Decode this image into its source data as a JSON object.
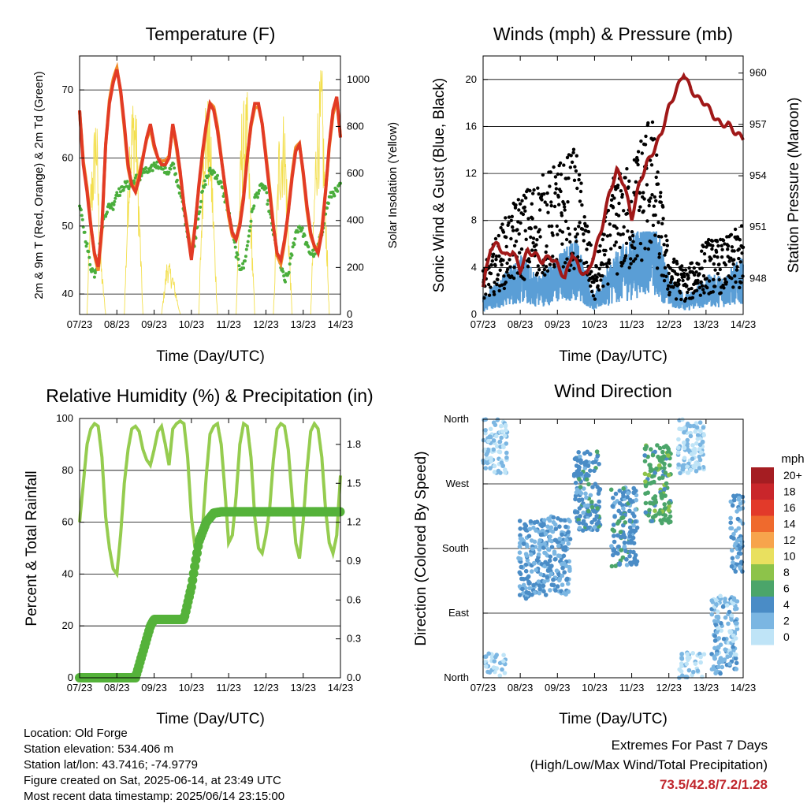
{
  "x_ticks": [
    "07/23",
    "08/23",
    "09/23",
    "10/23",
    "11/23",
    "12/23",
    "13/23",
    "14/23"
  ],
  "colors": {
    "temp2m": "#e23b25",
    "temp9m": "#f08a28",
    "dew": "#4aae3c",
    "solar": "#f3df4e",
    "wind": "#5a9ed6",
    "gust": "#000000",
    "pressure": "#a01818",
    "rh": "#95cc4f",
    "precip": "#55b23a"
  },
  "chart_data": [
    {
      "type": "line",
      "title": "Temperature (F)",
      "xlabel": "Time (Day/UTC)",
      "ylabel": "2m & 9m T (Red, Orange) & 2m Td (Green)",
      "ylabel_right": "Solar Insolation (Yellow)",
      "x_ticks": [
        "07/23",
        "08/23",
        "09/23",
        "10/23",
        "11/23",
        "12/23",
        "13/23",
        "14/23"
      ],
      "y_ticks": [
        40,
        50,
        60,
        70
      ],
      "y_ticks_right": [
        0,
        200,
        400,
        600,
        800,
        1000
      ],
      "ylim": [
        37,
        75
      ],
      "ylim_right": [
        0,
        1100
      ],
      "series": [
        {
          "name": "2m T",
          "x": [
            0,
            0.1,
            0.2,
            0.3,
            0.4,
            0.5,
            0.6,
            0.7,
            0.8,
            0.9,
            1.0,
            1.1,
            1.2,
            1.3,
            1.4,
            1.5,
            1.6,
            1.7,
            1.8,
            1.9,
            2.0,
            2.1,
            2.2,
            2.3,
            2.4,
            2.5,
            2.6,
            2.7,
            2.8,
            2.9,
            3.0,
            3.1,
            3.2,
            3.3,
            3.4,
            3.5,
            3.6,
            3.7,
            3.8,
            3.9,
            4.0,
            4.1,
            4.2,
            4.3,
            4.4,
            4.5,
            4.6,
            4.7,
            4.8,
            4.9,
            5.0,
            5.1,
            5.2,
            5.3,
            5.4,
            5.5,
            5.6,
            5.7,
            5.8,
            5.9,
            6.0,
            6.1,
            6.2,
            6.3,
            6.4,
            6.5,
            6.6,
            6.7,
            6.8,
            6.9,
            7.0
          ],
          "values": [
            67,
            59,
            55,
            50,
            46,
            44,
            50,
            62,
            68,
            71,
            73,
            70,
            65,
            59,
            56,
            55,
            57,
            60,
            63,
            65,
            62,
            60,
            59,
            59,
            60,
            65,
            62,
            58,
            53,
            49,
            45,
            50,
            56,
            61,
            65,
            68,
            67,
            64,
            60,
            56,
            52,
            49,
            48,
            50,
            54,
            60,
            65,
            68,
            68,
            65,
            60,
            55,
            50,
            46,
            45,
            48,
            52,
            57,
            61,
            62,
            58,
            53,
            49,
            47,
            46,
            49,
            55,
            62,
            67,
            69,
            63
          ]
        },
        {
          "name": "9m T",
          "x": [
            0,
            0.5,
            1.0,
            1.5,
            2.0,
            2.5,
            3.0,
            3.5,
            4.0,
            4.5,
            5.0,
            5.5,
            6.0,
            6.5,
            7.0
          ],
          "values": [
            67,
            45,
            72,
            56,
            62,
            64,
            45,
            68,
            52,
            60,
            59,
            46,
            59,
            48,
            64
          ]
        },
        {
          "name": "2m Td",
          "x": [
            0,
            0.1,
            0.2,
            0.3,
            0.4,
            0.5,
            0.6,
            0.7,
            0.8,
            0.9,
            1.0,
            1.1,
            1.2,
            1.3,
            1.4,
            1.5,
            1.6,
            1.7,
            1.8,
            1.9,
            2.0,
            2.1,
            2.2,
            2.3,
            2.4,
            2.5,
            2.6,
            2.7,
            2.8,
            2.9,
            3.0,
            3.1,
            3.2,
            3.3,
            3.4,
            3.5,
            3.6,
            3.7,
            3.8,
            3.9,
            4.0,
            4.1,
            4.2,
            4.3,
            4.4,
            4.5,
            4.6,
            4.7,
            4.8,
            4.9,
            5.0,
            5.1,
            5.2,
            5.3,
            5.4,
            5.5,
            5.6,
            5.7,
            5.8,
            5.9,
            6.0,
            6.1,
            6.2,
            6.3,
            6.4,
            6.5,
            6.6,
            6.7,
            6.8,
            6.9,
            7.0
          ],
          "values": [
            53,
            50,
            47,
            44,
            43,
            45,
            50,
            52,
            53,
            53,
            55,
            55,
            56,
            56,
            56,
            57,
            57,
            58,
            58,
            58,
            59,
            59,
            59,
            58,
            58,
            59,
            57,
            55,
            52,
            49,
            46,
            48,
            52,
            55,
            57,
            58,
            58,
            57,
            56,
            54,
            52,
            49,
            46,
            44,
            44,
            47,
            51,
            54,
            55,
            56,
            55,
            52,
            49,
            46,
            44,
            42,
            43,
            46,
            49,
            50,
            49,
            47,
            46,
            46,
            47,
            49,
            52,
            54,
            55,
            55,
            56
          ]
        },
        {
          "name": "Solar",
          "x": [
            0,
            0.2,
            0.3,
            0.45,
            0.55,
            0.7,
            1.2,
            1.35,
            1.5,
            1.7,
            2.2,
            2.35,
            2.5,
            2.7,
            3.2,
            3.35,
            3.5,
            3.7,
            4.2,
            4.35,
            4.5,
            4.7,
            5.2,
            5.35,
            5.5,
            5.7,
            6.2,
            6.35,
            6.5,
            6.7,
            7.0
          ],
          "values": [
            0,
            0,
            600,
            950,
            300,
            0,
            0,
            900,
            1000,
            0,
            0,
            250,
            180,
            0,
            0,
            1000,
            900,
            0,
            0,
            900,
            950,
            0,
            0,
            800,
            900,
            0,
            0,
            850,
            1100,
            0,
            0
          ]
        }
      ]
    },
    {
      "type": "scatter",
      "title": "Winds (mph) & Pressure (mb)",
      "xlabel": "Time (Day/UTC)",
      "ylabel": "Sonic Wind & Gust (Blue, Black)",
      "ylabel_right": "Station Pressure (Maroon)",
      "x_ticks": [
        "07/23",
        "08/23",
        "09/23",
        "10/23",
        "11/23",
        "12/23",
        "13/23",
        "14/23"
      ],
      "y_ticks": [
        0,
        4,
        8,
        12,
        16,
        20
      ],
      "y_ticks_right": [
        948,
        951,
        954,
        957,
        960
      ],
      "ylim": [
        0,
        22
      ],
      "ylim_right": [
        945.9,
        961
      ],
      "series": [
        {
          "name": "Pressure",
          "x": [
            0,
            0.2,
            0.4,
            0.6,
            0.8,
            1.0,
            1.2,
            1.4,
            1.6,
            1.8,
            2.0,
            2.2,
            2.4,
            2.6,
            2.8,
            3.0,
            3.2,
            3.4,
            3.6,
            3.8,
            4.0,
            4.2,
            4.4,
            4.6,
            4.8,
            5.0,
            5.2,
            5.4,
            5.6,
            5.8,
            6.0,
            6.2,
            6.4,
            6.6,
            6.8,
            7.0
          ],
          "values": [
            947.5,
            949.8,
            950.0,
            949.3,
            949.6,
            948.5,
            949.6,
            949.4,
            949.0,
            949.3,
            948.8,
            948.0,
            949.5,
            948.5,
            948.2,
            949.5,
            951.0,
            953.0,
            954.3,
            953.5,
            951.5,
            953.5,
            954.7,
            955.5,
            956.5,
            958.0,
            959.0,
            960.0,
            959.0,
            958.5,
            958.2,
            957.5,
            957.0,
            957.0,
            956.5,
            956.2
          ]
        },
        {
          "name": "Wind",
          "x": [
            0,
            0.5,
            1.0,
            1.5,
            2.0,
            2.5,
            3.0,
            3.5,
            4.0,
            4.5,
            5.0,
            5.5,
            6.0,
            6.5,
            7.0
          ],
          "values": [
            1,
            2,
            3,
            2,
            3,
            4,
            1,
            3,
            4,
            6,
            2,
            1,
            2,
            2,
            3
          ]
        },
        {
          "name": "Gust",
          "x": [
            0,
            0.5,
            1.0,
            1.5,
            2.0,
            2.5,
            3.0,
            3.5,
            4.0,
            4.5,
            5.0,
            5.5,
            6.0,
            6.5,
            7.0
          ],
          "values": [
            3,
            6,
            8,
            9,
            10,
            11,
            3,
            9,
            10,
            14,
            4,
            3,
            5,
            5,
            6
          ]
        }
      ]
    },
    {
      "type": "line",
      "title": "Relative Humidity (%) & Precipitation (in)",
      "xlabel": "Time (Day/UTC)",
      "ylabel": "Percent & Total Rainfall",
      "x_ticks": [
        "07/23",
        "08/23",
        "09/23",
        "10/23",
        "11/23",
        "12/23",
        "13/23",
        "14/23"
      ],
      "y_ticks": [
        0,
        20,
        40,
        60,
        80,
        100
      ],
      "y_ticks_right": [
        "0.0",
        "0.3",
        "0.6",
        "0.9",
        "1.2",
        "1.5",
        "1.8"
      ],
      "ylim": [
        0,
        100
      ],
      "ylim_right": [
        0,
        2.0
      ],
      "series": [
        {
          "name": "RH",
          "x": [
            0,
            0.1,
            0.2,
            0.3,
            0.4,
            0.5,
            0.6,
            0.7,
            0.8,
            0.9,
            1.0,
            1.1,
            1.2,
            1.3,
            1.4,
            1.5,
            1.6,
            1.7,
            1.8,
            1.9,
            2.0,
            2.1,
            2.2,
            2.3,
            2.4,
            2.5,
            2.6,
            2.7,
            2.8,
            2.9,
            3.0,
            3.1,
            3.2,
            3.3,
            3.4,
            3.5,
            3.6,
            3.7,
            3.8,
            3.9,
            4.0,
            4.1,
            4.2,
            4.3,
            4.4,
            4.5,
            4.6,
            4.7,
            4.8,
            4.9,
            5.0,
            5.1,
            5.2,
            5.3,
            5.4,
            5.5,
            5.6,
            5.7,
            5.8,
            5.9,
            6.0,
            6.1,
            6.2,
            6.3,
            6.4,
            6.5,
            6.6,
            6.7,
            6.8,
            6.9,
            7.0
          ],
          "values": [
            60,
            75,
            90,
            96,
            98,
            97,
            85,
            62,
            50,
            42,
            40,
            55,
            75,
            88,
            96,
            97,
            95,
            88,
            84,
            82,
            88,
            95,
            97,
            90,
            82,
            96,
            98,
            99,
            98,
            85,
            62,
            50,
            48,
            58,
            78,
            94,
            97,
            98,
            90,
            72,
            52,
            55,
            70,
            90,
            98,
            97,
            85,
            62,
            50,
            48,
            55,
            65,
            84,
            96,
            98,
            97,
            88,
            70,
            52,
            46,
            60,
            80,
            95,
            98,
            96,
            85,
            65,
            52,
            48,
            55,
            78
          ]
        },
        {
          "name": "Precipitation",
          "x": [
            0,
            0.5,
            1.0,
            1.5,
            1.7,
            1.9,
            2.0,
            2.5,
            2.8,
            3.0,
            3.2,
            3.4,
            3.6,
            3.8,
            4.0,
            5.0,
            6.0,
            7.0
          ],
          "values": [
            0,
            0,
            0,
            0,
            0.2,
            0.4,
            0.45,
            0.45,
            0.45,
            0.7,
            1.05,
            1.2,
            1.27,
            1.28,
            1.28,
            1.28,
            1.28,
            1.28
          ]
        }
      ]
    },
    {
      "type": "scatter",
      "title": "Wind Direction",
      "xlabel": "Time (Day/UTC)",
      "ylabel": "Direction (Colored By Speed)",
      "x_ticks": [
        "07/23",
        "08/23",
        "09/23",
        "10/23",
        "11/23",
        "12/23",
        "13/23",
        "14/23"
      ],
      "y_ticks": [
        "North",
        "East",
        "South",
        "West",
        "North"
      ],
      "ylim": [
        0,
        360
      ],
      "legend_title": "mph",
      "legend": [
        "20+",
        "18",
        "16",
        "14",
        "12",
        "10",
        "8",
        "6",
        "4",
        "2",
        "0"
      ],
      "legend_colors": [
        "#a51d22",
        "#c9262b",
        "#e23a2a",
        "#ef6a2d",
        "#f7a44c",
        "#e9e05f",
        "#8dc34a",
        "#4ba56a",
        "#4a8cc6",
        "#7bb6e2",
        "#bfe4f7"
      ],
      "clusters": [
        {
          "x": 0.3,
          "y": 340,
          "speed": 1
        },
        {
          "x": 1.3,
          "y": 165,
          "speed": 3
        },
        {
          "x": 2.0,
          "y": 170,
          "speed": 3
        },
        {
          "x": 2.8,
          "y": 260,
          "speed": 4
        },
        {
          "x": 3.8,
          "y": 210,
          "speed": 4
        },
        {
          "x": 4.7,
          "y": 270,
          "speed": 6
        },
        {
          "x": 5.6,
          "y": 340,
          "speed": 1
        },
        {
          "x": 6.5,
          "y": 60,
          "speed": 2
        },
        {
          "x": 7.0,
          "y": 200,
          "speed": 3
        }
      ]
    }
  ],
  "info": {
    "location": "Location: Old Forge",
    "elevation": "Station elevation: 534.406 m",
    "latlon": "Station lat/lon: 43.7416; -74.9779",
    "created": "Figure created on Sat, 2025-06-14, at 23:49 UTC",
    "recent": "Most recent data timestamp: 2025/06/14 23:15:00"
  },
  "extremes": {
    "line1": "Extremes For Past 7 Days",
    "line2": "(High/Low/Max Wind/Total Precipitation)",
    "values": "73.5/42.8/7.2/1.28"
  }
}
